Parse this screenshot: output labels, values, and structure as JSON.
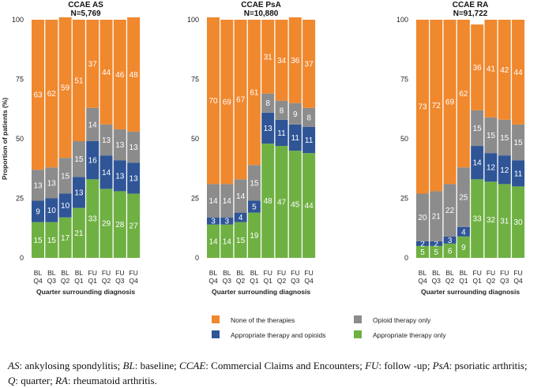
{
  "chart_data": [
    {
      "type": "bar",
      "stacked": true,
      "title": "CCAE AS",
      "subtitle": "N=5,769",
      "xlabel": "Quarter surrounding diagnosis",
      "ylabel": "Proportion of patients (%)",
      "ylim": [
        0,
        100
      ],
      "yticks": [
        0,
        25,
        50,
        75,
        100
      ],
      "categories": [
        [
          "BL",
          "Q4"
        ],
        [
          "BL",
          "Q3"
        ],
        [
          "BL",
          "Q2"
        ],
        [
          "BL",
          "Q1"
        ],
        [
          "FU",
          "Q1"
        ],
        [
          "FU",
          "Q2"
        ],
        [
          "FU",
          "Q3"
        ],
        [
          "FU",
          "Q4"
        ]
      ],
      "series": [
        {
          "name": "Appropriate therapy only",
          "values": [
            15,
            15,
            17,
            21,
            33,
            29,
            28,
            27
          ]
        },
        {
          "name": "Appropriate therapy and opioids",
          "values": [
            9,
            10,
            10,
            13,
            16,
            14,
            13,
            13
          ]
        },
        {
          "name": "Opioid therapy only",
          "values": [
            13,
            13,
            15,
            15,
            14,
            13,
            13,
            13
          ]
        },
        {
          "name": "None of the therapies",
          "values": [
            63,
            62,
            59,
            51,
            37,
            44,
            46,
            48
          ]
        }
      ]
    },
    {
      "type": "bar",
      "stacked": true,
      "title": "CCAE PsA",
      "subtitle": "N=10,880",
      "xlabel": "Quarter surrounding diagnosis",
      "ylim": [
        0,
        100
      ],
      "yticks": [
        0,
        25,
        50,
        75,
        100
      ],
      "categories": [
        [
          "BL",
          "Q4"
        ],
        [
          "BL",
          "Q3"
        ],
        [
          "BL",
          "Q2"
        ],
        [
          "BL",
          "Q1"
        ],
        [
          "FU",
          "Q1"
        ],
        [
          "FU",
          "Q2"
        ],
        [
          "FU",
          "Q3"
        ],
        [
          "FU",
          "Q4"
        ]
      ],
      "series": [
        {
          "name": "Appropriate therapy only",
          "values": [
            14,
            14,
            15,
            19,
            48,
            47,
            45,
            44
          ]
        },
        {
          "name": "Appropriate therapy and opioids",
          "values": [
            3,
            3,
            4,
            5,
            13,
            11,
            11,
            11
          ]
        },
        {
          "name": "Opioid therapy only",
          "values": [
            14,
            14,
            14,
            15,
            8,
            8,
            9,
            8
          ]
        },
        {
          "name": "None of the therapies",
          "values": [
            70,
            69,
            67,
            61,
            31,
            34,
            36,
            37
          ]
        }
      ]
    },
    {
      "type": "bar",
      "stacked": true,
      "title": "CCAE RA",
      "subtitle": "N=91,722",
      "xlabel": "Quarter surrounding diagnosis",
      "ylim": [
        0,
        100
      ],
      "yticks": [
        0,
        25,
        50,
        75,
        100
      ],
      "categories": [
        [
          "BL",
          "Q4"
        ],
        [
          "BL",
          "Q3"
        ],
        [
          "BL",
          "Q2"
        ],
        [
          "BL",
          "Q1"
        ],
        [
          "FU",
          "Q1"
        ],
        [
          "FU",
          "Q2"
        ],
        [
          "FU",
          "Q3"
        ],
        [
          "FU",
          "Q4"
        ]
      ],
      "series": [
        {
          "name": "Appropriate therapy only",
          "values": [
            5,
            5,
            6,
            9,
            33,
            32,
            31,
            30
          ]
        },
        {
          "name": "Appropriate therapy and opioids",
          "values": [
            2,
            2,
            3,
            4,
            14,
            12,
            12,
            11
          ]
        },
        {
          "name": "Opioid therapy only",
          "values": [
            20,
            21,
            22,
            25,
            15,
            15,
            15,
            15
          ]
        },
        {
          "name": "None of the therapies",
          "values": [
            73,
            72,
            69,
            62,
            36,
            41,
            42,
            44
          ]
        }
      ]
    }
  ],
  "colors": {
    "None of the therapies": "#f0882e",
    "Appropriate therapy and opioids": "#2f5597",
    "Opioid therapy only": "#8c8c8c",
    "Appropriate therapy only": "#6fb043"
  },
  "legend": [
    {
      "label": "None of the therapies",
      "series": "None of the therapies",
      "pos": "left"
    },
    {
      "label": "Appropriate therapy and opioids",
      "series": "Appropriate therapy and opioids",
      "pos": "left"
    },
    {
      "label": "Opioid therapy only",
      "series": "Opioid therapy only",
      "pos": "right"
    },
    {
      "label": "Appropriate therapy only",
      "series": "Appropriate therapy only",
      "pos": "right"
    }
  ],
  "caption": [
    {
      "abbr": "AS",
      "def": ": ankylosing spondylitis; "
    },
    {
      "abbr": "BL",
      "def": ": baseline; "
    },
    {
      "abbr": "CCAE",
      "def": ": Commercial Claims and Encounters; "
    },
    {
      "abbr": "FU",
      "def": ": follow -up; "
    },
    {
      "abbr": "PsA",
      "def": ": psoriatic arthritis; "
    },
    {
      "abbr": "Q",
      "def": ": quarter; "
    },
    {
      "abbr": "RA",
      "def": ": rheumatoid arthritis."
    }
  ]
}
